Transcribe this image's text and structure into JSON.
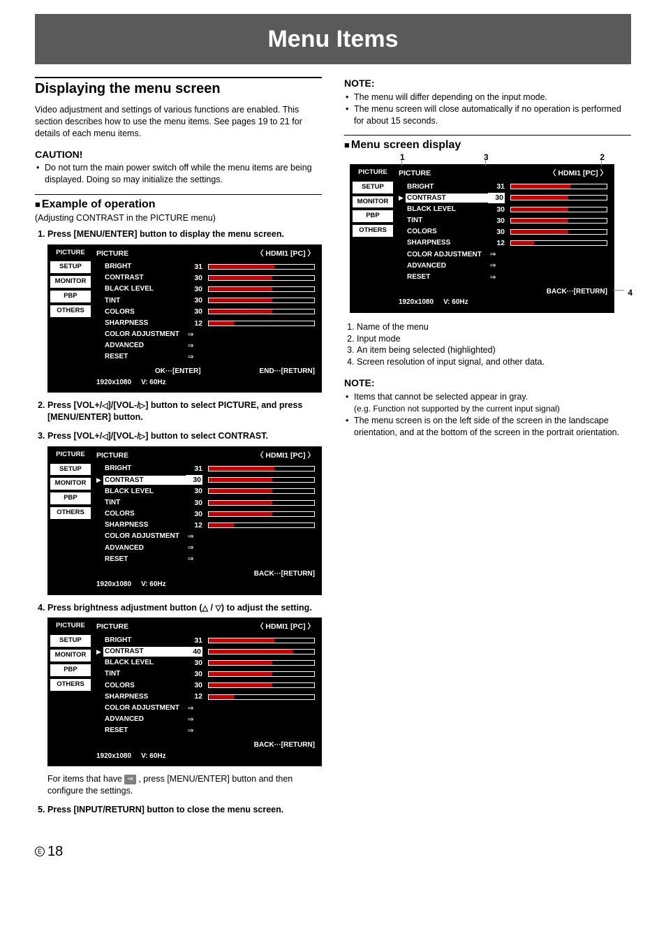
{
  "banner": "Menu Items",
  "pageNumber": "18",
  "pageMark": "E",
  "left": {
    "sectionTitle": "Displaying the menu screen",
    "intro": "Video adjustment and settings of various functions are enabled. This section describes how to use the menu items. See pages 19 to 21 for details of each menu items.",
    "cautionTitle": "CAUTION!",
    "cautionItem": "Do not turn the main power switch off while the menu items are being displayed. Doing so may initialize the settings.",
    "exampleTitle": "Example of operation",
    "exampleNote": "(Adjusting CONTRAST in the PICTURE menu)",
    "step1": "Press [MENU/ENTER] button to display the menu screen.",
    "step2a": "Press [VOL+/",
    "step2b": "]/[VOL-/",
    "step2c": "] button to select PICTURE, and press [MENU/ENTER] button.",
    "step3a": "Press [VOL+/",
    "step3b": "]/[VOL-/",
    "step3c": "] button to select CONTRAST.",
    "step4a": "Press brightness adjustment button (",
    "step4b": " / ",
    "step4c": ") to adjust the setting.",
    "step4note": "For items that have ",
    "step4note2": " , press [MENU/ENTER] button and then configure the settings.",
    "step5": "Press [INPUT/RETURN] button to close the menu screen."
  },
  "right": {
    "noteTitle": "NOTE:",
    "note1": "The menu will differ depending on the input mode.",
    "note2": "The menu screen will close automatically if no operation is performed for about 15 seconds.",
    "displayTitle": "Menu screen display",
    "leg1": "Name of the menu",
    "leg2": "Input mode",
    "leg3": "An item being selected (highlighted)",
    "leg4": "Screen resolution of input signal, and other data.",
    "note2Title": "NOTE:",
    "n2a": "Items that cannot be selected appear in gray.",
    "n2aSub": "(e.g. Function not supported by the current input signal)",
    "n2b": "The menu screen is on the left side of the screen in the landscape orientation, and at the bottom of the screen in the portrait orientation."
  },
  "menu": {
    "tabs": [
      "PICTURE",
      "SETUP",
      "MONITOR",
      "PBP",
      "OTHERS"
    ],
    "title": "PICTURE",
    "mode": "HDMI1 [PC]",
    "resolution": "1920x1080",
    "refresh": "V: 60Hz",
    "footer_ok": "OK···[ENTER]",
    "footer_end": "END···[RETURN]",
    "footer_back": "BACK···[RETURN]",
    "bar_color": "#c00000",
    "rows_main": [
      {
        "label": "BRIGHT",
        "val": "31",
        "fill": 62
      },
      {
        "label": "CONTRAST",
        "val": "30",
        "fill": 60
      },
      {
        "label": "BLACK LEVEL",
        "val": "30",
        "fill": 60
      },
      {
        "label": "TINT",
        "val": "30",
        "fill": 60
      },
      {
        "label": "COLORS",
        "val": "30",
        "fill": 60
      },
      {
        "label": "SHARPNESS",
        "val": "12",
        "fill": 24
      }
    ],
    "rows_arrow": [
      {
        "label": "COLOR ADJUSTMENT"
      },
      {
        "label": "ADVANCED"
      },
      {
        "label": "RESET"
      }
    ],
    "contrast_40": "40"
  }
}
